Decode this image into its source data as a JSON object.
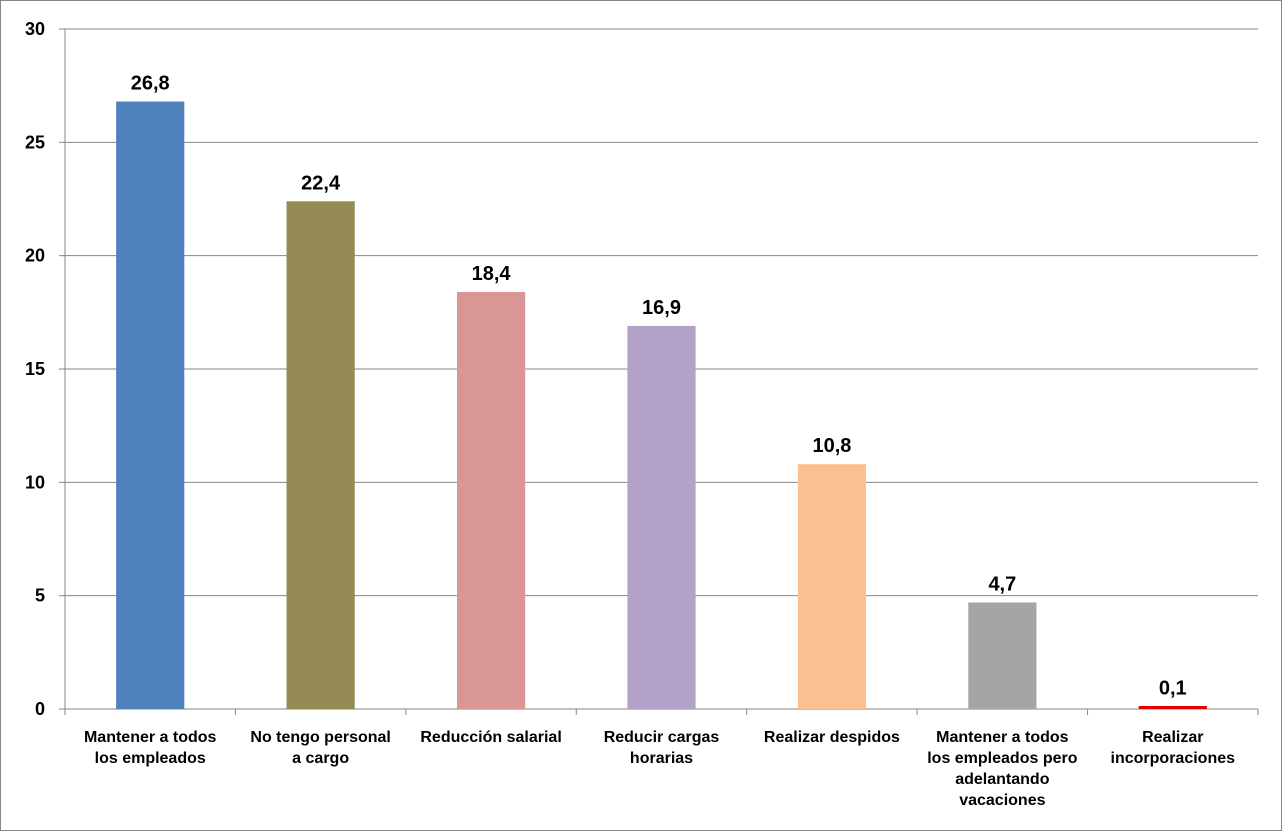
{
  "chart_data": {
    "type": "bar",
    "categories": [
      [
        "Mantener a todos",
        "los empleados"
      ],
      [
        "No tengo personal",
        "a cargo"
      ],
      [
        "Reducción salarial"
      ],
      [
        "Reducir cargas",
        "horarias"
      ],
      [
        "Realizar despidos"
      ],
      [
        "Mantener a todos",
        "los empleados pero",
        "adelantando",
        "vacaciones"
      ],
      [
        "Realizar",
        "incorporaciones"
      ]
    ],
    "values": [
      26.8,
      22.4,
      18.4,
      16.9,
      10.8,
      4.7,
      0.1
    ],
    "data_labels": [
      "26,8",
      "22,4",
      "18,4",
      "16,9",
      "10,8",
      "4,7",
      "0,1"
    ],
    "colors": [
      "#4f81bd",
      "#948a54",
      "#d99694",
      "#b2a2c7",
      "#fac090",
      "#a5a5a5",
      "#e00000"
    ],
    "yticks": [
      0,
      5,
      10,
      15,
      20,
      25,
      30
    ],
    "ylim": [
      0,
      30
    ],
    "grid": true,
    "legend": "none",
    "title": "",
    "xlabel": "",
    "ylabel": ""
  }
}
